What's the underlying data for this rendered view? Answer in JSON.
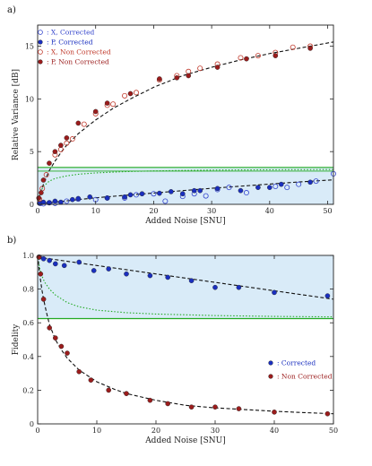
{
  "chart_data": [
    {
      "panel_label": "a)",
      "type": "scatter",
      "title": "",
      "xlabel": "Added Noise [SNU]",
      "ylabel": "Relative Variance [dB]",
      "xlim": [
        0,
        51
      ],
      "ylim": [
        0,
        17
      ],
      "xticks": [
        0,
        10,
        20,
        30,
        40,
        50
      ],
      "yticks": [
        0,
        5,
        10,
        15
      ],
      "legend_position": "top-left",
      "shaded_band": {
        "y_low": 0,
        "y_high": 3.5,
        "color": "#d9ebf8",
        "edge_color": "#22aa22"
      },
      "threshold_line": {
        "y": 3.5,
        "color": "#22aa22"
      },
      "dotted_curve": {
        "x": [
          0,
          0.5,
          1,
          2,
          3,
          5,
          7,
          10,
          15,
          20,
          30,
          40,
          51
        ],
        "y": [
          0,
          1.2,
          1.7,
          2.2,
          2.45,
          2.7,
          2.85,
          2.98,
          3.1,
          3.17,
          3.25,
          3.28,
          3.3
        ],
        "color": "#22aa22"
      },
      "fit_curves": [
        {
          "name": "",
          "x": [
            0,
            0.5,
            1,
            2,
            3,
            4,
            5,
            7,
            10,
            13,
            16,
            20,
            25,
            30,
            35,
            40,
            45,
            51
          ],
          "y": [
            0,
            1.2,
            1.9,
            3.2,
            4.1,
            4.9,
            5.6,
            6.7,
            8.0,
            9.1,
            10.0,
            11.1,
            12.2,
            13.0,
            13.7,
            14.3,
            14.8,
            15.4
          ],
          "color": "#111111"
        },
        {
          "name": "",
          "x": [
            0,
            5,
            10,
            15,
            20,
            25,
            30,
            35,
            40,
            45,
            51
          ],
          "y": [
            0.05,
            0.33,
            0.62,
            0.85,
            1.07,
            1.3,
            1.52,
            1.72,
            1.92,
            2.12,
            2.32
          ],
          "color": "#111111"
        }
      ],
      "series": [
        {
          "name": "X, Corrected",
          "marker": "open",
          "color": "#3344cc",
          "x": [
            0.5,
            1,
            2,
            3,
            5,
            7,
            10,
            12,
            15,
            17,
            20,
            22,
            25,
            27,
            29,
            31,
            33,
            36,
            41,
            43,
            45,
            48,
            51
          ],
          "y": [
            0.1,
            0.05,
            0.15,
            0.1,
            0.3,
            0.5,
            0.45,
            0.6,
            0.6,
            0.9,
            1.0,
            0.3,
            0.75,
            1.0,
            0.8,
            1.4,
            1.6,
            1.1,
            1.7,
            1.6,
            1.9,
            2.2,
            2.9
          ]
        },
        {
          "name": "P, Corrected",
          "marker": "filled",
          "color": "#1a2fbf",
          "x": [
            0.3,
            1,
            2,
            3,
            4,
            6,
            7,
            9,
            12,
            15,
            16,
            18,
            21,
            23,
            25,
            27,
            28,
            31,
            35,
            38,
            40,
            42,
            47
          ],
          "y": [
            0.1,
            0.2,
            0.15,
            0.3,
            0.2,
            0.45,
            0.55,
            0.7,
            0.6,
            0.7,
            0.9,
            1.0,
            1.05,
            1.2,
            1.0,
            1.3,
            1.3,
            1.5,
            1.3,
            1.6,
            1.6,
            1.9,
            2.1
          ]
        },
        {
          "name": "X, Non Corrected",
          "marker": "open",
          "color": "#c0392b",
          "x": [
            0.3,
            0.8,
            1.5,
            3,
            4,
            5,
            6,
            8,
            10,
            12,
            13,
            15,
            17,
            21,
            24,
            26,
            28,
            31,
            35,
            38,
            41,
            44,
            47
          ],
          "y": [
            0.5,
            1.5,
            2.8,
            4.7,
            5.2,
            5.8,
            6.2,
            7.6,
            8.6,
            9.4,
            9.5,
            10.3,
            10.6,
            11.8,
            12.2,
            12.6,
            12.9,
            13.3,
            13.9,
            14.1,
            14.4,
            14.9,
            15.0
          ]
        },
        {
          "name": "P, Non Corrected",
          "marker": "filled",
          "color": "#9b1c1c",
          "x": [
            0.2,
            0.6,
            1,
            2,
            3,
            4,
            5,
            7,
            10,
            12,
            16,
            21,
            24,
            26,
            31,
            36,
            41,
            47
          ],
          "y": [
            0.6,
            1.1,
            2.3,
            3.9,
            5.0,
            5.6,
            6.3,
            7.7,
            8.8,
            9.6,
            10.5,
            11.9,
            12.0,
            12.2,
            13.0,
            13.8,
            14.1,
            14.8
          ]
        }
      ]
    },
    {
      "panel_label": "b)",
      "type": "scatter",
      "title": "",
      "xlabel": "Added Noise [SNU]",
      "ylabel": "Fidelity",
      "xlim": [
        0,
        50
      ],
      "ylim": [
        0,
        1.0
      ],
      "xticks": [
        0,
        10,
        20,
        30,
        40,
        50
      ],
      "yticks": [
        0,
        0.2,
        0.4,
        0.6,
        0.8,
        1.0
      ],
      "ytick_labels": [
        "0",
        "0.2",
        "0.4",
        "0.6",
        "0.8",
        "1.0"
      ],
      "legend_position": "right",
      "shaded_band": {
        "y_low": 0.625,
        "y_high": 1.0,
        "color": "#d9ebf8",
        "edge_color": "#22aa22"
      },
      "threshold_line": {
        "y": 0.625,
        "color": "#22aa22"
      },
      "dotted_curve": {
        "x": [
          0,
          0.3,
          0.7,
          1.2,
          2,
          3,
          5,
          7,
          10,
          15,
          20,
          30,
          40,
          50
        ],
        "y": [
          1.0,
          0.93,
          0.88,
          0.84,
          0.8,
          0.765,
          0.72,
          0.695,
          0.675,
          0.66,
          0.652,
          0.643,
          0.638,
          0.635
        ],
        "color": "#22aa22"
      },
      "fit_curves": [
        {
          "name": "",
          "x": [
            0,
            5,
            10,
            15,
            20,
            25,
            30,
            35,
            40,
            45,
            50
          ],
          "y": [
            0.99,
            0.965,
            0.94,
            0.915,
            0.89,
            0.865,
            0.84,
            0.815,
            0.79,
            0.765,
            0.74
          ],
          "color": "#111111"
        },
        {
          "name": "",
          "x": [
            0,
            0.3,
            0.7,
            1,
            1.5,
            2,
            3,
            4,
            5,
            7,
            10,
            13,
            15,
            20,
            25,
            30,
            35,
            40,
            45,
            50
          ],
          "y": [
            1.0,
            0.9,
            0.8,
            0.74,
            0.66,
            0.59,
            0.5,
            0.44,
            0.39,
            0.32,
            0.25,
            0.205,
            0.18,
            0.14,
            0.11,
            0.095,
            0.085,
            0.075,
            0.067,
            0.06
          ],
          "color": "#111111"
        }
      ],
      "series": [
        {
          "name": "Corrected",
          "marker": "filled",
          "color": "#1a2fbf",
          "x": [
            0.3,
            1,
            2,
            3,
            4.5,
            7,
            9.5,
            12,
            15,
            19,
            22,
            26,
            30,
            34,
            40,
            49
          ],
          "y": [
            0.99,
            0.98,
            0.97,
            0.95,
            0.94,
            0.96,
            0.91,
            0.92,
            0.89,
            0.88,
            0.87,
            0.85,
            0.81,
            0.81,
            0.78,
            0.76
          ]
        },
        {
          "name": "Non Corrected",
          "marker": "filled",
          "color": "#9b1c1c",
          "x": [
            0.2,
            0.5,
            1,
            2,
            3,
            4,
            5,
            7,
            9,
            12,
            15,
            19,
            22,
            26,
            30,
            34,
            40,
            49
          ],
          "y": [
            0.99,
            0.89,
            0.74,
            0.57,
            0.51,
            0.46,
            0.42,
            0.31,
            0.26,
            0.2,
            0.18,
            0.14,
            0.12,
            0.1,
            0.1,
            0.09,
            0.07,
            0.06
          ]
        }
      ]
    }
  ]
}
